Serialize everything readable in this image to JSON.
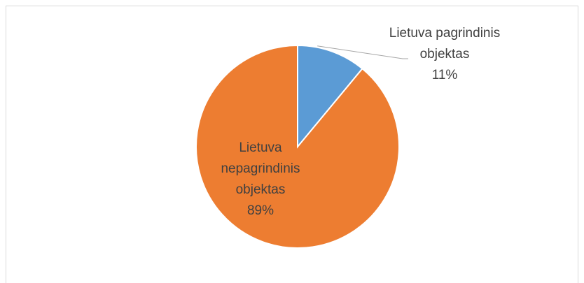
{
  "chart_data": {
    "type": "pie",
    "categories": [
      "Lietuva pagrindinis objektas",
      "Lietuva nepagrindinis objektas"
    ],
    "values": [
      11,
      89
    ],
    "value_labels": [
      "11%",
      "89%"
    ],
    "colors": [
      "#5b9bd5",
      "#ed7d31"
    ]
  }
}
